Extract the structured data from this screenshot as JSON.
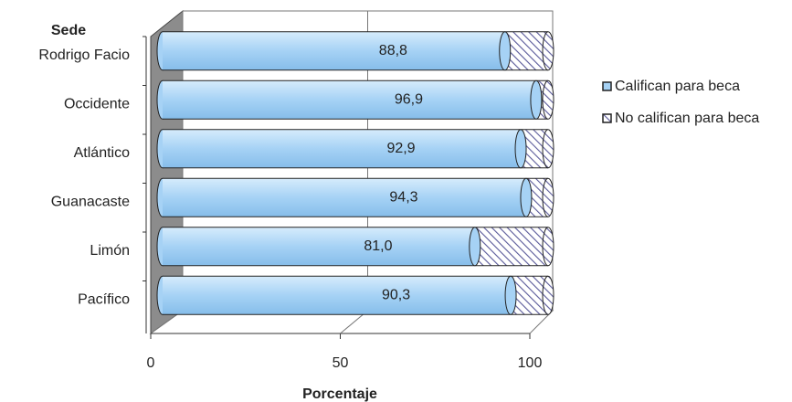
{
  "chart_data": {
    "type": "bar",
    "stacked": true,
    "orientation": "horizontal",
    "y_label": "Sede",
    "x_label": "Porcentaje",
    "categories": [
      "Rodrigo Facio",
      "Occidente",
      "Atlántico",
      "Guanacaste",
      "Limón",
      "Pacífico"
    ],
    "series": [
      {
        "name": "Califican para beca",
        "color": "#a6d2f5",
        "values": [
          88.8,
          96.9,
          92.9,
          94.3,
          81.0,
          90.3
        ],
        "value_labels": [
          "88,8",
          "96,9",
          "92,9",
          "94,3",
          "81,0",
          "90,3"
        ]
      },
      {
        "name": "No califican para beca",
        "color": "#9a9ad6",
        "values": [
          11.2,
          3.1,
          7.1,
          5.7,
          19.0,
          9.7
        ]
      }
    ],
    "xlim": [
      0,
      100
    ],
    "xticks": [
      0,
      50,
      100
    ],
    "grid": true
  }
}
